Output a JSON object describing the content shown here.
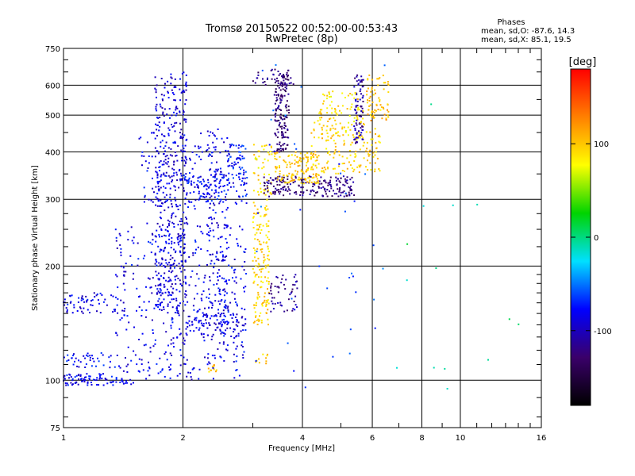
{
  "header": {
    "title": "Tromsø 20150522 00:52:00-00:53:43",
    "subtitle": "RwPretec (8p)",
    "stats_title": "Phases",
    "stats_o": "mean, sd,O: -87.6, 14.3",
    "stats_x": "mean, sd,X:  85.1, 19.5"
  },
  "colorbar": {
    "unit_label": "[deg]",
    "ticks": [
      {
        "value": 100,
        "label": "100"
      },
      {
        "value": 0,
        "label": "0"
      },
      {
        "value": -100,
        "label": "-100"
      }
    ],
    "range": [
      -180,
      180
    ],
    "colors": [
      "#000000",
      "#3a006a",
      "#0000ff",
      "#00e0ff",
      "#00d400",
      "#ffff00",
      "#ff8000",
      "#ff0000"
    ]
  },
  "chart_data": {
    "type": "scatter",
    "xlabel": "Frequency [MHz]",
    "ylabel": "Stationary phase Virtual Height [km]",
    "x_scale": "log",
    "y_scale": "log",
    "xlim": [
      1,
      16
    ],
    "ylim": [
      75,
      750
    ],
    "grid": true,
    "x_ticks": [
      {
        "value": 1,
        "label": "1"
      },
      {
        "value": 2,
        "label": "2"
      },
      {
        "value": 4,
        "label": "4"
      },
      {
        "value": 6,
        "label": "6"
      },
      {
        "value": 8,
        "label": "8"
      },
      {
        "value": 10,
        "label": "10"
      },
      {
        "value": 16,
        "label": "16"
      }
    ],
    "x_minor_ticks": [
      3,
      5,
      7,
      9,
      11,
      12,
      13,
      14,
      15
    ],
    "y_ticks": [
      {
        "value": 75,
        "label": "75"
      },
      {
        "value": 100,
        "label": "100"
      },
      {
        "value": 200,
        "label": "200"
      },
      {
        "value": 300,
        "label": "300"
      },
      {
        "value": 400,
        "label": "400"
      },
      {
        "value": 500,
        "label": "500"
      },
      {
        "value": 600,
        "label": "600"
      },
      {
        "value": 750,
        "label": "750"
      }
    ],
    "y_minor_ticks": [
      80,
      90,
      110,
      120,
      130,
      140,
      150,
      160,
      170,
      180,
      190,
      225,
      250,
      275,
      350,
      450,
      550,
      650,
      700
    ],
    "point_groups": [
      {
        "x_range": [
          1.0,
          1.5
        ],
        "y_range": [
          97,
          104
        ],
        "count": 90,
        "phase": -85
      },
      {
        "x_range": [
          1.0,
          1.35
        ],
        "y_range": [
          108,
          118
        ],
        "count": 40,
        "phase": -80
      },
      {
        "x_range": [
          1.0,
          1.35
        ],
        "y_range": [
          150,
          170
        ],
        "count": 60,
        "phase": -85
      },
      {
        "x_range": [
          1.35,
          2.9
        ],
        "y_range": [
          100,
          260
        ],
        "count": 450,
        "phase": -85
      },
      {
        "x_range": [
          1.7,
          2.05
        ],
        "y_range": [
          150,
          650
        ],
        "count": 420,
        "phase": -90
      },
      {
        "x_range": [
          1.55,
          2.4
        ],
        "y_range": [
          280,
          450
        ],
        "count": 120,
        "phase": -85
      },
      {
        "x_range": [
          2.05,
          2.9
        ],
        "y_range": [
          130,
          150
        ],
        "count": 80,
        "phase": -90
      },
      {
        "x_range": [
          2.3,
          2.6
        ],
        "y_range": [
          140,
          460
        ],
        "count": 160,
        "phase": -85
      },
      {
        "x_range": [
          2.0,
          2.9
        ],
        "y_range": [
          290,
          350
        ],
        "count": 100,
        "phase": -80
      },
      {
        "x_range": [
          2.6,
          2.9
        ],
        "y_range": [
          330,
          420
        ],
        "count": 60,
        "phase": -75
      },
      {
        "x_range": [
          3.0,
          3.3
        ],
        "y_range": [
          140,
          300
        ],
        "count": 150,
        "phase": 95
      },
      {
        "x_range": [
          3.0,
          3.35
        ],
        "y_range": [
          300,
          420
        ],
        "count": 50,
        "phase": 90
      },
      {
        "x_range": [
          3.3,
          3.9
        ],
        "y_range": [
          150,
          190
        ],
        "count": 50,
        "phase": -115
      },
      {
        "x_range": [
          3.2,
          5.4
        ],
        "y_range": [
          305,
          345
        ],
        "count": 200,
        "phase": -120
      },
      {
        "x_range": [
          3.4,
          3.7
        ],
        "y_range": [
          400,
          650
        ],
        "count": 150,
        "phase": -125
      },
      {
        "x_range": [
          3.0,
          3.8
        ],
        "y_range": [
          600,
          660
        ],
        "count": 35,
        "phase": -120
      },
      {
        "x_range": [
          3.4,
          4.4
        ],
        "y_range": [
          330,
          400
        ],
        "count": 140,
        "phase": 100
      },
      {
        "x_range": [
          4.2,
          6.3
        ],
        "y_range": [
          350,
          520
        ],
        "count": 190,
        "phase": 95
      },
      {
        "x_range": [
          5.4,
          5.7
        ],
        "y_range": [
          420,
          640
        ],
        "count": 80,
        "phase": -110
      },
      {
        "x_range": [
          4.5,
          5.6
        ],
        "y_range": [
          420,
          580
        ],
        "count": 60,
        "phase": 90
      },
      {
        "x_range": [
          5.8,
          6.6
        ],
        "y_range": [
          480,
          640
        ],
        "count": 60,
        "phase": 105
      },
      {
        "x_range": [
          2.3,
          2.45
        ],
        "y_range": [
          105,
          110
        ],
        "count": 12,
        "phase": 100
      },
      {
        "x_range": [
          3.0,
          3.3
        ],
        "y_range": [
          110,
          118
        ],
        "count": 10,
        "phase": 100
      },
      {
        "x_range": [
          3.0,
          6.5
        ],
        "y_range": [
          90,
          700
        ],
        "count": 40,
        "phase": -60
      },
      {
        "x_range": [
          6.5,
          15
        ],
        "y_range": [
          90,
          600
        ],
        "count": 14,
        "phase": 0
      }
    ]
  }
}
